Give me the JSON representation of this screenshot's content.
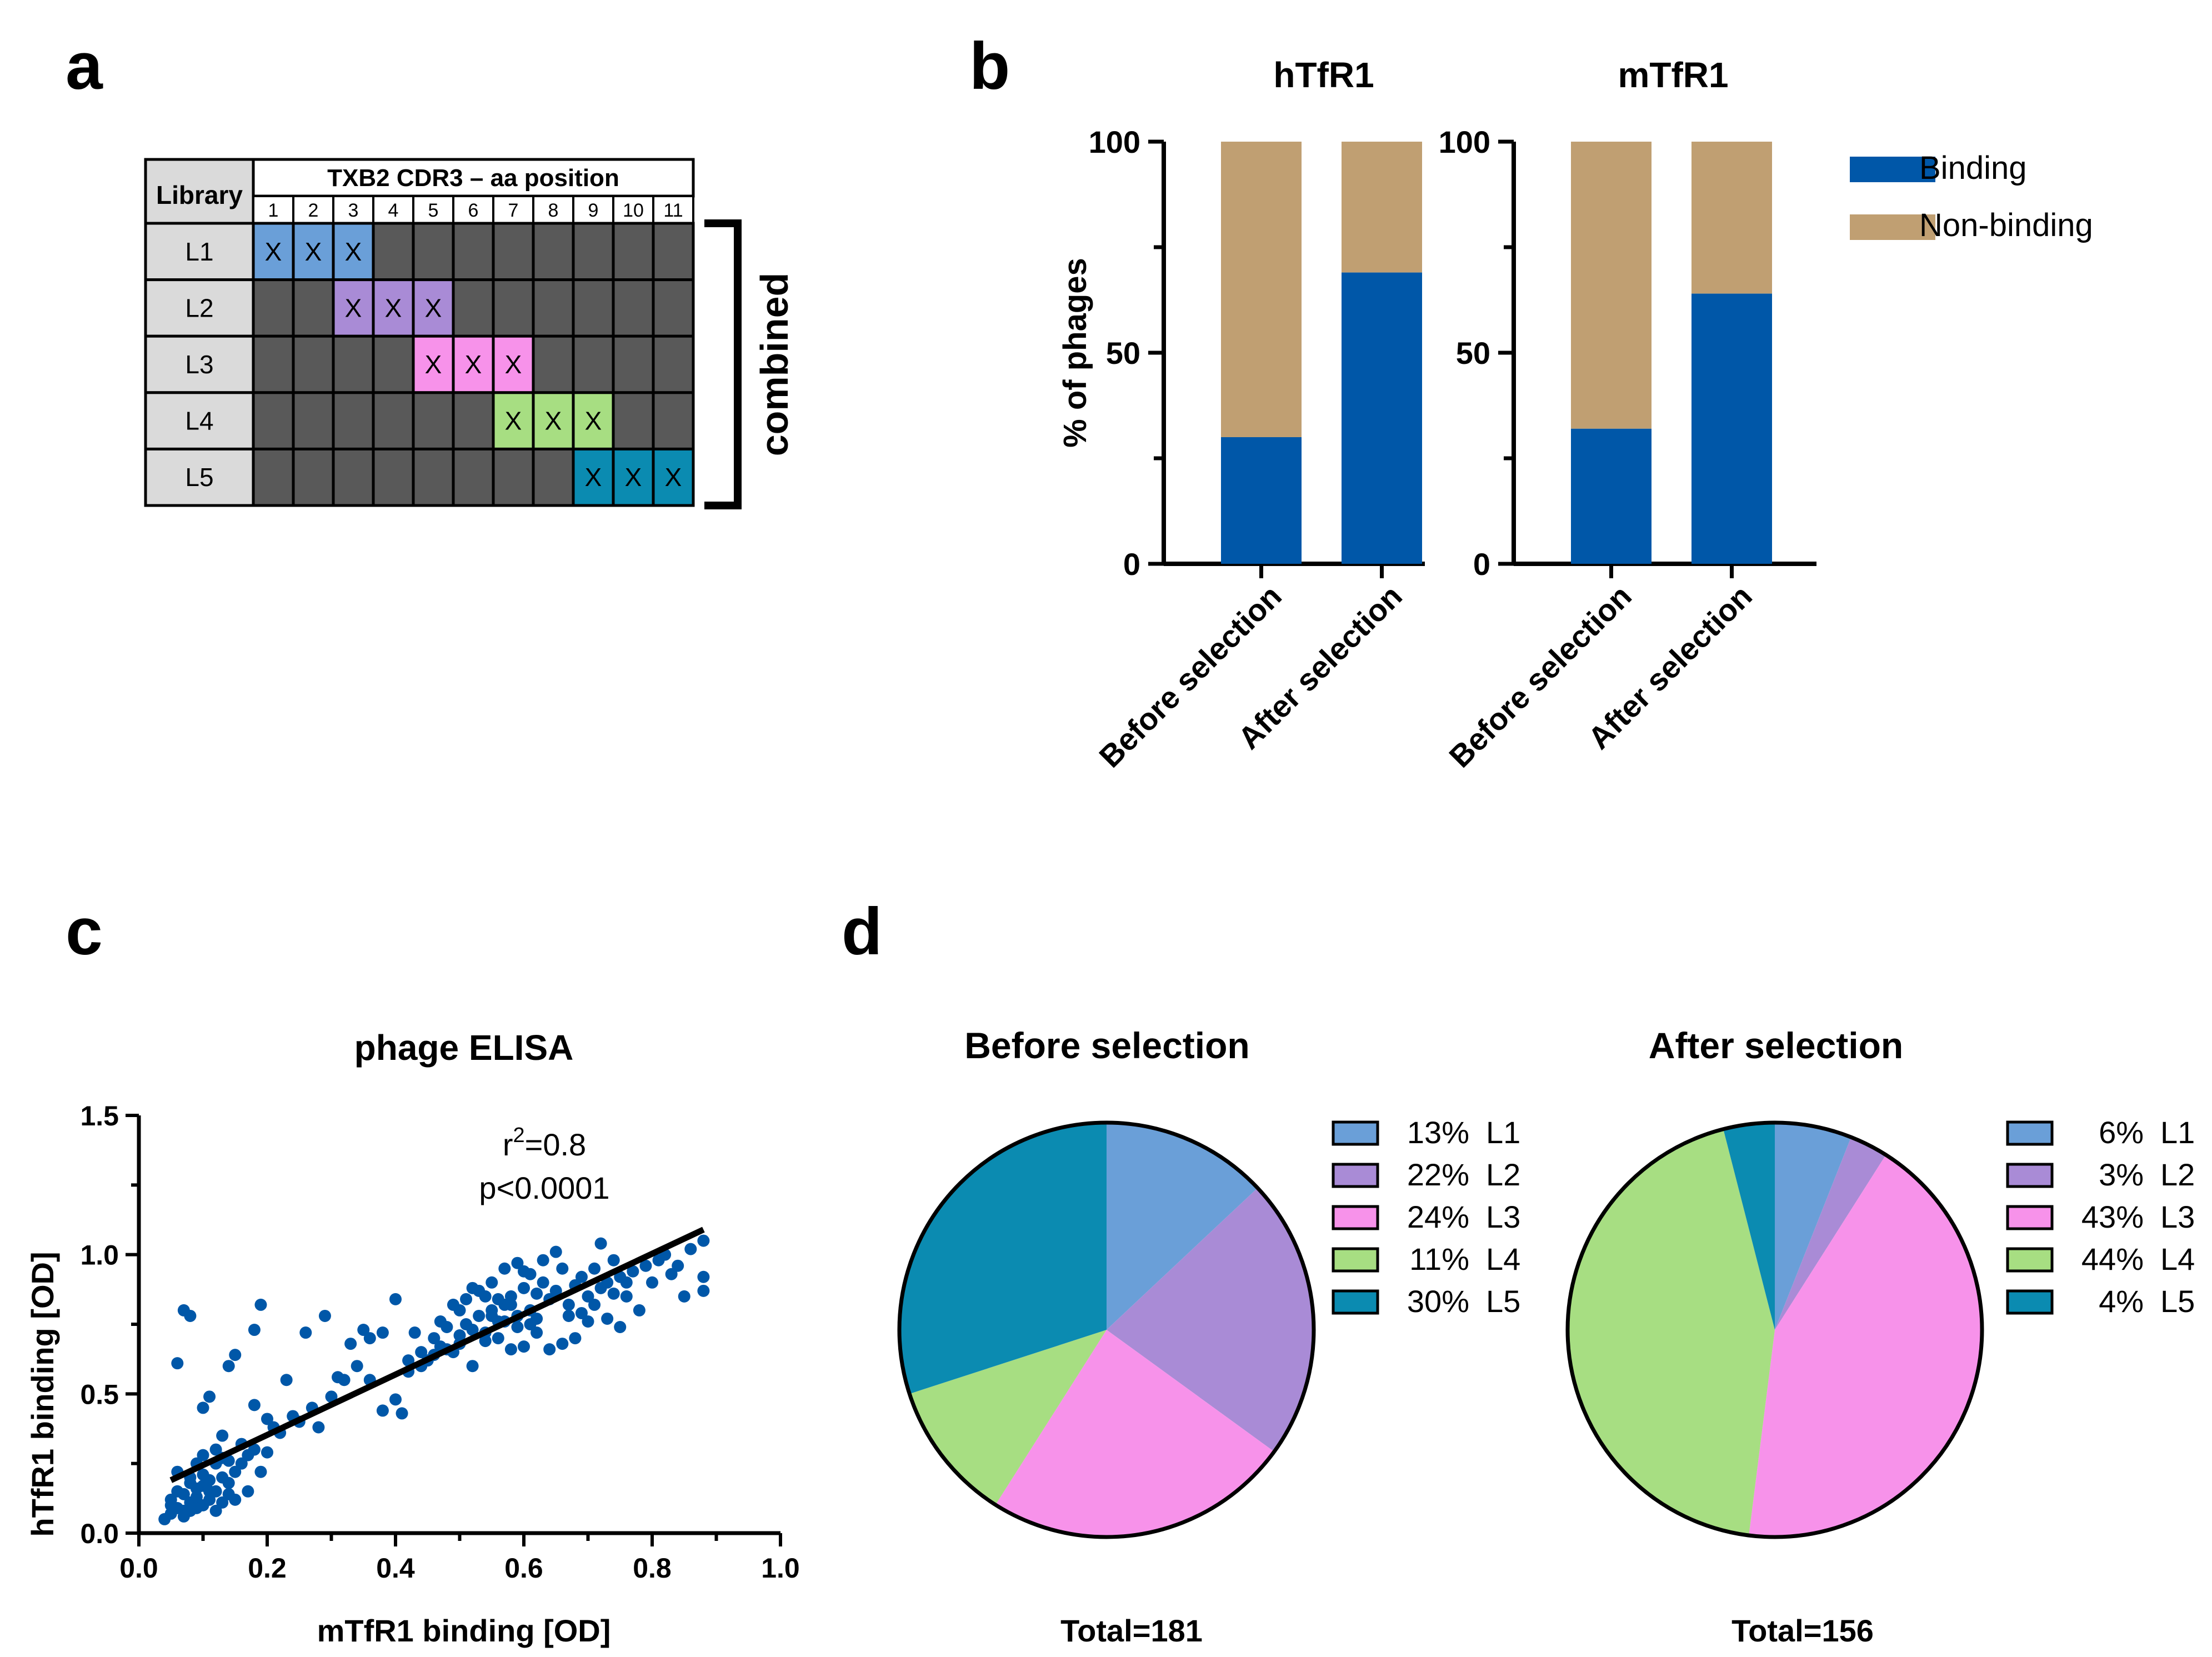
{
  "panel_labels": [
    "a",
    "b",
    "c",
    "d"
  ],
  "panel_a": {
    "header_library": "Library",
    "header_positions": "TXB2 CDR3 – aa position",
    "positions": [
      "1",
      "2",
      "3",
      "4",
      "5",
      "6",
      "7",
      "8",
      "9",
      "10",
      "11"
    ],
    "mark": "X",
    "bracket_label": "combined",
    "base_color": "#595959",
    "rows": [
      {
        "label": "L1",
        "randomized": [
          1,
          2,
          3
        ],
        "color": "#6a9fd8"
      },
      {
        "label": "L2",
        "randomized": [
          3,
          4,
          5
        ],
        "color": "#a98bd6"
      },
      {
        "label": "L3",
        "randomized": [
          5,
          6,
          7
        ],
        "color": "#f792ea"
      },
      {
        "label": "L4",
        "randomized": [
          7,
          8,
          9
        ],
        "color": "#a7de82"
      },
      {
        "label": "L5",
        "randomized": [
          9,
          10,
          11
        ],
        "color": "#0b8bb1"
      }
    ]
  },
  "chart_data": [
    {
      "type": "bar",
      "stacked": true,
      "panel": "b",
      "title": "hTfR1",
      "categories": [
        "Before selection",
        "After selection"
      ],
      "series": [
        {
          "name": "Binding",
          "values": [
            30,
            69
          ],
          "color": "#0057a8"
        },
        {
          "name": "Non-binding",
          "values": [
            70,
            31
          ],
          "color": "#c09f72"
        }
      ],
      "ylabel": "% of phages",
      "ylim": [
        0,
        100
      ],
      "yticks": [
        0,
        50,
        100
      ]
    },
    {
      "type": "bar",
      "stacked": true,
      "panel": "b",
      "title": "mTfR1",
      "categories": [
        "Before selection",
        "After selection"
      ],
      "series": [
        {
          "name": "Binding",
          "values": [
            32,
            64
          ],
          "color": "#0057a8"
        },
        {
          "name": "Non-binding",
          "values": [
            68,
            36
          ],
          "color": "#c09f72"
        }
      ],
      "ylim": [
        0,
        100
      ],
      "yticks": [
        0,
        50,
        100
      ],
      "legend": [
        "Binding",
        "Non-binding"
      ],
      "legend_position": "right"
    },
    {
      "type": "scatter",
      "panel": "c",
      "title": "phage ELISA",
      "xlabel": "mTfR1 binding [OD]",
      "ylabel": "hTfR1 binding [OD]",
      "xlim": [
        0,
        1.0
      ],
      "ylim": [
        0,
        1.5
      ],
      "xticks": [
        "0.0",
        "0.2",
        "0.4",
        "0.6",
        "0.8",
        "1.0"
      ],
      "yticks": [
        "0.0",
        "0.5",
        "1.0",
        "1.5"
      ],
      "annotation_r2_prefix": "r",
      "annotation_r2_exp": "2",
      "annotation_r2_value": "=0.8",
      "annotation_p": "p<0.0001",
      "point_color": "#0057a8",
      "fit_line": [
        [
          0.05,
          0.19
        ],
        [
          0.88,
          1.09
        ]
      ],
      "points": [
        [
          0.04,
          0.05
        ],
        [
          0.05,
          0.07
        ],
        [
          0.06,
          0.09
        ],
        [
          0.07,
          0.08
        ],
        [
          0.08,
          0.11
        ],
        [
          0.09,
          0.13
        ],
        [
          0.1,
          0.1
        ],
        [
          0.05,
          0.12
        ],
        [
          0.06,
          0.15
        ],
        [
          0.08,
          0.18
        ],
        [
          0.07,
          0.06
        ],
        [
          0.09,
          0.09
        ],
        [
          0.11,
          0.12
        ],
        [
          0.12,
          0.15
        ],
        [
          0.1,
          0.17
        ],
        [
          0.13,
          0.2
        ],
        [
          0.14,
          0.14
        ],
        [
          0.15,
          0.22
        ],
        [
          0.12,
          0.25
        ],
        [
          0.11,
          0.19
        ],
        [
          0.06,
          0.22
        ],
        [
          0.08,
          0.2
        ],
        [
          0.05,
          0.1
        ],
        [
          0.07,
          0.14
        ],
        [
          0.09,
          0.16
        ],
        [
          0.1,
          0.21
        ],
        [
          0.13,
          0.11
        ],
        [
          0.14,
          0.18
        ],
        [
          0.16,
          0.25
        ],
        [
          0.17,
          0.28
        ],
        [
          0.18,
          0.3
        ],
        [
          0.2,
          0.29
        ],
        [
          0.15,
          0.12
        ],
        [
          0.17,
          0.15
        ],
        [
          0.19,
          0.22
        ],
        [
          0.12,
          0.3
        ],
        [
          0.14,
          0.26
        ],
        [
          0.13,
          0.35
        ],
        [
          0.16,
          0.32
        ],
        [
          0.21,
          0.38
        ],
        [
          0.22,
          0.36
        ],
        [
          0.24,
          0.42
        ],
        [
          0.25,
          0.4
        ],
        [
          0.27,
          0.45
        ],
        [
          0.28,
          0.38
        ],
        [
          0.3,
          0.49
        ],
        [
          0.32,
          0.55
        ],
        [
          0.18,
          0.46
        ],
        [
          0.2,
          0.41
        ],
        [
          0.23,
          0.55
        ],
        [
          0.1,
          0.45
        ],
        [
          0.11,
          0.49
        ],
        [
          0.14,
          0.6
        ],
        [
          0.15,
          0.64
        ],
        [
          0.06,
          0.61
        ],
        [
          0.07,
          0.8
        ],
        [
          0.08,
          0.78
        ],
        [
          0.19,
          0.82
        ],
        [
          0.18,
          0.73
        ],
        [
          0.26,
          0.72
        ],
        [
          0.29,
          0.78
        ],
        [
          0.33,
          0.68
        ],
        [
          0.35,
          0.73
        ],
        [
          0.38,
          0.72
        ],
        [
          0.36,
          0.55
        ],
        [
          0.4,
          0.48
        ],
        [
          0.41,
          0.43
        ],
        [
          0.42,
          0.58
        ],
        [
          0.44,
          0.65
        ],
        [
          0.45,
          0.62
        ],
        [
          0.46,
          0.7
        ],
        [
          0.47,
          0.67
        ],
        [
          0.48,
          0.74
        ],
        [
          0.49,
          0.65
        ],
        [
          0.5,
          0.71
        ],
        [
          0.51,
          0.75
        ],
        [
          0.52,
          0.6
        ],
        [
          0.53,
          0.78
        ],
        [
          0.54,
          0.72
        ],
        [
          0.55,
          0.8
        ],
        [
          0.56,
          0.76
        ],
        [
          0.57,
          0.82
        ],
        [
          0.58,
          0.85
        ],
        [
          0.59,
          0.74
        ],
        [
          0.6,
          0.88
        ],
        [
          0.61,
          0.8
        ],
        [
          0.62,
          0.77
        ],
        [
          0.63,
          0.9
        ],
        [
          0.64,
          0.84
        ],
        [
          0.65,
          0.87
        ],
        [
          0.66,
          0.95
        ],
        [
          0.67,
          0.82
        ],
        [
          0.68,
          0.89
        ],
        [
          0.69,
          0.92
        ],
        [
          0.7,
          0.85
        ],
        [
          0.71,
          0.95
        ],
        [
          0.72,
          0.88
        ],
        [
          0.73,
          0.9
        ],
        [
          0.74,
          0.98
        ],
        [
          0.75,
          0.92
        ],
        [
          0.76,
          0.85
        ],
        [
          0.77,
          0.94
        ],
        [
          0.78,
          0.8
        ],
        [
          0.79,
          0.96
        ],
        [
          0.8,
          0.9
        ],
        [
          0.81,
          0.98
        ],
        [
          0.82,
          1.0
        ],
        [
          0.83,
          0.93
        ],
        [
          0.85,
          0.85
        ],
        [
          0.86,
          1.02
        ],
        [
          0.88,
          1.05
        ],
        [
          0.88,
          0.92
        ],
        [
          0.88,
          0.87
        ],
        [
          0.84,
          0.96
        ],
        [
          0.72,
          1.04
        ],
        [
          0.7,
          0.76
        ],
        [
          0.68,
          0.7
        ],
        [
          0.66,
          0.68
        ],
        [
          0.64,
          0.66
        ],
        [
          0.62,
          0.72
        ],
        [
          0.6,
          0.67
        ],
        [
          0.58,
          0.66
        ],
        [
          0.56,
          0.7
        ],
        [
          0.54,
          0.69
        ],
        [
          0.52,
          0.73
        ],
        [
          0.5,
          0.68
        ],
        [
          0.48,
          0.66
        ],
        [
          0.46,
          0.64
        ],
        [
          0.44,
          0.6
        ],
        [
          0.42,
          0.62
        ],
        [
          0.5,
          0.8
        ],
        [
          0.52,
          0.88
        ],
        [
          0.55,
          0.9
        ],
        [
          0.57,
          0.95
        ],
        [
          0.59,
          0.97
        ],
        [
          0.61,
          0.93
        ],
        [
          0.63,
          0.98
        ],
        [
          0.65,
          1.01
        ],
        [
          0.67,
          0.78
        ],
        [
          0.69,
          0.79
        ],
        [
          0.71,
          0.82
        ],
        [
          0.73,
          0.77
        ],
        [
          0.75,
          0.74
        ],
        [
          0.74,
          0.86
        ],
        [
          0.76,
          0.9
        ],
        [
          0.6,
          0.94
        ],
        [
          0.62,
          0.86
        ],
        [
          0.58,
          0.82
        ],
        [
          0.56,
          0.84
        ],
        [
          0.54,
          0.85
        ],
        [
          0.4,
          0.84
        ],
        [
          0.43,
          0.72
        ],
        [
          0.47,
          0.76
        ],
        [
          0.49,
          0.82
        ],
        [
          0.51,
          0.84
        ],
        [
          0.53,
          0.87
        ],
        [
          0.55,
          0.78
        ],
        [
          0.57,
          0.76
        ],
        [
          0.59,
          0.78
        ],
        [
          0.61,
          0.75
        ],
        [
          0.38,
          0.44
        ],
        [
          0.36,
          0.7
        ],
        [
          0.34,
          0.6
        ],
        [
          0.31,
          0.56
        ],
        [
          0.09,
          0.25
        ],
        [
          0.1,
          0.28
        ],
        [
          0.11,
          0.15
        ],
        [
          0.12,
          0.08
        ],
        [
          0.13,
          0.27
        ],
        [
          0.08,
          0.08
        ]
      ]
    },
    {
      "type": "pie",
      "panel": "d",
      "title": "Before selection",
      "total_label": "Total=181",
      "slices": [
        {
          "label": "L1",
          "value": 13,
          "pct": "13%",
          "color": "#6a9fd8"
        },
        {
          "label": "L2",
          "value": 22,
          "pct": "22%",
          "color": "#a98bd6"
        },
        {
          "label": "L3",
          "value": 24,
          "pct": "24%",
          "color": "#f792ea"
        },
        {
          "label": "L4",
          "value": 11,
          "pct": "11%",
          "color": "#a7de82"
        },
        {
          "label": "L5",
          "value": 30,
          "pct": "30%",
          "color": "#0b8bb1"
        }
      ]
    },
    {
      "type": "pie",
      "panel": "d",
      "title": "After selection",
      "total_label": "Total=156",
      "slices": [
        {
          "label": "L1",
          "value": 6,
          "pct": "6%",
          "color": "#6a9fd8"
        },
        {
          "label": "L2",
          "value": 3,
          "pct": "3%",
          "color": "#a98bd6"
        },
        {
          "label": "L3",
          "value": 43,
          "pct": "43%",
          "color": "#f792ea"
        },
        {
          "label": "L4",
          "value": 44,
          "pct": "44%",
          "color": "#a7de82"
        },
        {
          "label": "L5",
          "value": 4,
          "pct": "4%",
          "color": "#0b8bb1"
        }
      ]
    }
  ]
}
